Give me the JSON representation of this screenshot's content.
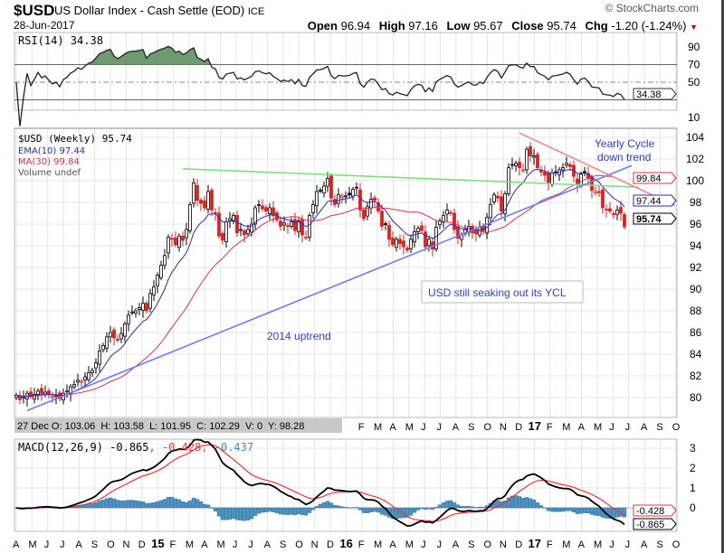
{
  "header": {
    "symbol": "$USD",
    "description": "US Dollar Index - Cash Settle (EOD)",
    "exchange": "ICE",
    "copyright": "© StockCharts.com",
    "date": "28-Jun-2017",
    "open_label": "Open",
    "open": "96.94",
    "high_label": "High",
    "high": "97.16",
    "low_label": "Low",
    "low": "95.67",
    "close_label": "Close",
    "close": "95.74",
    "chg_label": "Chg",
    "chg": "-1.20 (-1.24%)"
  },
  "rsi_panel": {
    "legend": "RSI(14) 34.38",
    "tag": "34.38",
    "ticks": [
      "90",
      "70",
      "50",
      "10"
    ]
  },
  "price_panel": {
    "legend_main": "$USD (Weekly) 95.74",
    "legend_ema": "EMA(10) 97.44",
    "legend_ma": "MA(30) 99.84",
    "legend_volume": "Volume undef",
    "tag_ma": "99.84",
    "tag_ema": "97.44",
    "tag_close": "95.74",
    "annotations": [
      "Yearly Cycle",
      "down trend",
      "USD still seaking out its YCL",
      "2014 uptrend"
    ]
  },
  "readout": "27 Dec O: 103.06  H: 103.58  L: 101.95  C: 102.29  V: 0  Y: 98.28",
  "macd_panel": {
    "legend": "MACD(12,26,9) -0.865",
    "legend_signal": ", -0.428",
    "legend_hist": ", -0.437",
    "tag_signal": "-0.428",
    "tag_macd": "-0.865",
    "ticks": [
      "3",
      "2",
      "1",
      "0"
    ]
  },
  "colors": {
    "ema": "#2b2bb5",
    "ma": "#d9304f",
    "green_line": "#7de07d",
    "blue_line": "#6d7cf0",
    "red_line": "#f08a8a",
    "rsi_fill": "#5f8f5f",
    "hist": "#4f93c0",
    "annotation": "#2a3fd6"
  },
  "chart_data": {
    "type": "candlestick",
    "period": "weekly",
    "start": "Apr 2014",
    "end": "28-Jun-2017",
    "x_month_labels": [
      "A",
      "M",
      "J",
      "J",
      "A",
      "S",
      "O",
      "N",
      "D",
      "15",
      "F",
      "M",
      "A",
      "M",
      "J",
      "J",
      "A",
      "S",
      "O",
      "N",
      "D",
      "16",
      "F",
      "M",
      "A",
      "M",
      "J",
      "J",
      "A",
      "S",
      "O",
      "N",
      "D",
      "17",
      "F",
      "M",
      "A",
      "M",
      "J",
      "J",
      "A",
      "S",
      "O"
    ],
    "price_ticks": [
      "104",
      "102",
      "100",
      "98",
      "96",
      "94",
      "92",
      "90",
      "88",
      "86",
      "84",
      "82",
      "80"
    ],
    "ylim": [
      79,
      105
    ],
    "closes": [
      80.2,
      79.8,
      80.0,
      80.4,
      80.1,
      80.3,
      80.6,
      80.4,
      80.5,
      80.3,
      80.1,
      80.2,
      79.9,
      80.4,
      80.6,
      81.0,
      81.2,
      81.6,
      81.5,
      81.9,
      82.3,
      82.5,
      83.2,
      84.3,
      84.8,
      85.6,
      86.0,
      85.5,
      85.3,
      85.9,
      86.8,
      87.6,
      87.9,
      88.0,
      88.3,
      88.7,
      88.0,
      89.6,
      90.2,
      91.3,
      92.2,
      93.1,
      94.8,
      94.6,
      94.1,
      94.9,
      94.5,
      95.5,
      97.8,
      99.8,
      98.2,
      97.9,
      97.5,
      99.0,
      97.3,
      97.0,
      94.9,
      94.5,
      96.2,
      96.5,
      96.8,
      95.2,
      95.5,
      95.0,
      95.5,
      96.0,
      97.5,
      97.8,
      97.4,
      97.2,
      97.5,
      96.8,
      96.4,
      95.8,
      96.1,
      95.8,
      96.2,
      95.4,
      96.3,
      95.0,
      94.8,
      96.8,
      97.8,
      99.0,
      99.1,
      99.5,
      100.2,
      98.4,
      97.8,
      98.7,
      98.6,
      98.6,
      98.7,
      99.2,
      99.4,
      97.3,
      96.5,
      97.6,
      98.3,
      98.2,
      97.2,
      95.8,
      96.0,
      94.6,
      94.1,
      94.6,
      94.2,
      93.9,
      93.6,
      94.6,
      95.3,
      95.6,
      95.4,
      93.9,
      94.6,
      93.7,
      95.7,
      96.3,
      96.8,
      97.3,
      97.0,
      95.5,
      94.7,
      95.0,
      95.5,
      95.8,
      95.2,
      95.1,
      95.7,
      95.4,
      96.6,
      97.8,
      98.7,
      98.4,
      97.2,
      98.8,
      101.2,
      101.5,
      101.6,
      101.2,
      101.0,
      102.9,
      102.29,
      102.3,
      101.2,
      100.8,
      100.5,
      99.8,
      100.7,
      100.8,
      101.0,
      101.2,
      101.6,
      101.3,
      100.4,
      99.6,
      100.6,
      100.8,
      100.2,
      99.1,
      99.0,
      98.9,
      97.5,
      97.3,
      97.2,
      96.9,
      97.3,
      97.0,
      95.74
    ],
    "indicators": [
      "EMA(10)",
      "MA(30)",
      "RSI(14)",
      "MACD(12,26,9)"
    ],
    "trendlines": [
      {
        "name": "resistance",
        "points": [
          [
            46,
            101.1
          ],
          [
            172,
            99.4
          ]
        ]
      },
      {
        "name": "2014 uptrend",
        "points": [
          [
            3,
            78.8
          ],
          [
            170,
            101.4
          ]
        ]
      },
      {
        "name": "Yearly Cycle down trend",
        "points": [
          [
            139,
            104.4
          ],
          [
            182,
            97.7
          ]
        ]
      }
    ]
  }
}
